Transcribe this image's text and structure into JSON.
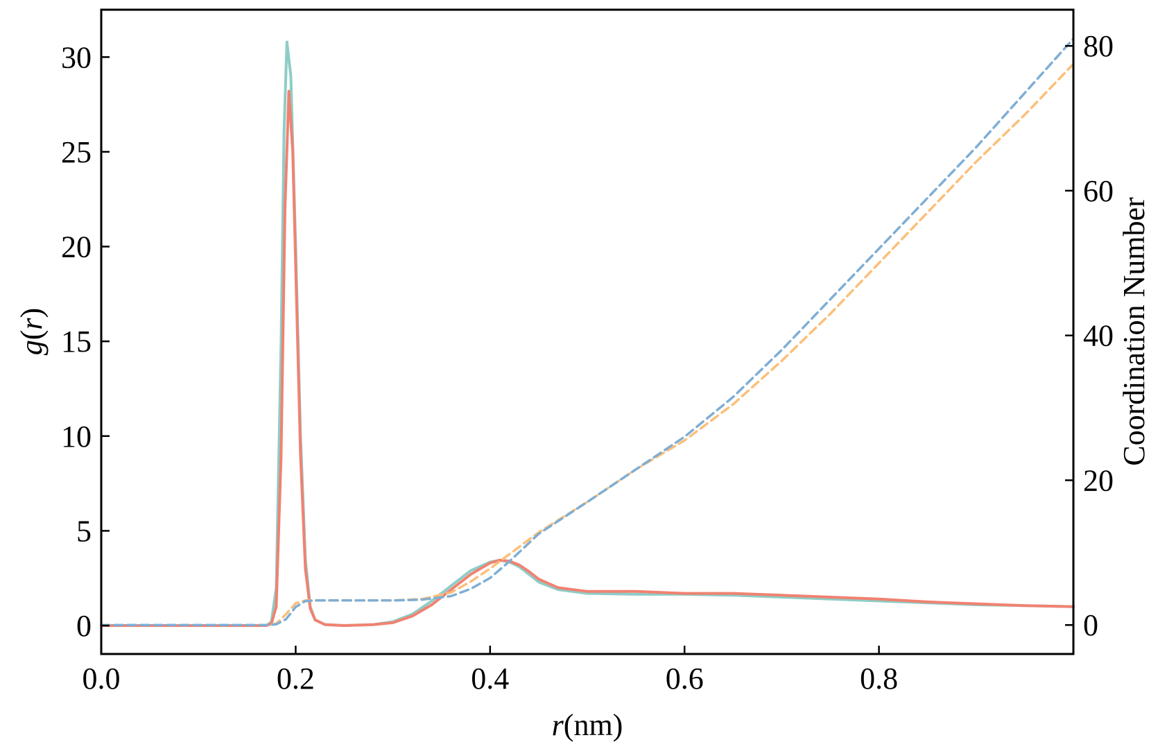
{
  "chart_data": {
    "type": "line",
    "xlabel": {
      "italic": "r",
      "rest": "(nm)"
    },
    "ylabel_left": {
      "pre": "g(",
      "italic": "r",
      "post": ")",
      "italic_g": true
    },
    "ylabel_right": "Coordination Number",
    "xlim": [
      0.0,
      1.0
    ],
    "ylim_left": [
      -1.5,
      32.5
    ],
    "ylim_right": [
      -4,
      85
    ],
    "x_ticks": [
      0.0,
      0.2,
      0.4,
      0.6,
      0.8
    ],
    "x_tick_labels": [
      "0.0",
      "0.2",
      "0.4",
      "0.6",
      "0.8"
    ],
    "y_left_ticks": [
      0,
      5,
      10,
      15,
      20,
      25,
      30
    ],
    "y_left_tick_labels": [
      "0",
      "5",
      "10",
      "15",
      "20",
      "25",
      "30"
    ],
    "y_right_ticks": [
      0,
      20,
      40,
      60,
      80
    ],
    "y_right_tick_labels": [
      "0",
      "20",
      "40",
      "60",
      "80"
    ],
    "grid": false,
    "legend": "none",
    "series": [
      {
        "axis": "left",
        "style": "solid",
        "color": "#8ecdc6",
        "x": [
          0.0,
          0.17,
          0.175,
          0.18,
          0.185,
          0.188,
          0.191,
          0.195,
          0.2,
          0.205,
          0.21,
          0.215,
          0.22,
          0.23,
          0.25,
          0.28,
          0.3,
          0.32,
          0.34,
          0.36,
          0.38,
          0.4,
          0.41,
          0.42,
          0.43,
          0.44,
          0.45,
          0.47,
          0.5,
          0.55,
          0.6,
          0.65,
          0.7,
          0.75,
          0.8,
          0.85,
          0.9,
          0.95,
          1.0
        ],
        "y": [
          0,
          0,
          0.2,
          2.0,
          15.0,
          26.0,
          30.8,
          29.0,
          20.0,
          10.0,
          3.5,
          1.0,
          0.3,
          0.05,
          0.0,
          0.05,
          0.2,
          0.6,
          1.3,
          2.1,
          2.9,
          3.35,
          3.45,
          3.35,
          3.1,
          2.7,
          2.3,
          1.9,
          1.7,
          1.65,
          1.65,
          1.6,
          1.5,
          1.4,
          1.3,
          1.2,
          1.1,
          1.05,
          1.0
        ]
      },
      {
        "axis": "left",
        "style": "solid",
        "color": "#f08272",
        "x": [
          0.0,
          0.17,
          0.175,
          0.18,
          0.185,
          0.189,
          0.193,
          0.197,
          0.2,
          0.205,
          0.21,
          0.215,
          0.22,
          0.23,
          0.25,
          0.28,
          0.3,
          0.32,
          0.34,
          0.36,
          0.38,
          0.4,
          0.41,
          0.42,
          0.43,
          0.44,
          0.45,
          0.47,
          0.5,
          0.55,
          0.6,
          0.65,
          0.7,
          0.75,
          0.8,
          0.85,
          0.9,
          0.95,
          1.0
        ],
        "y": [
          0,
          0,
          0.1,
          1.0,
          9.0,
          22.0,
          28.2,
          25.0,
          19.0,
          9.0,
          3.0,
          0.9,
          0.3,
          0.05,
          0.0,
          0.05,
          0.15,
          0.5,
          1.1,
          1.9,
          2.7,
          3.3,
          3.45,
          3.4,
          3.2,
          2.85,
          2.45,
          2.0,
          1.8,
          1.8,
          1.7,
          1.7,
          1.6,
          1.5,
          1.4,
          1.25,
          1.15,
          1.05,
          1.0
        ]
      },
      {
        "axis": "right",
        "style": "dashed",
        "color": "#fbbf7a",
        "x": [
          0.0,
          0.17,
          0.18,
          0.19,
          0.2,
          0.21,
          0.22,
          0.25,
          0.3,
          0.33,
          0.36,
          0.38,
          0.4,
          0.42,
          0.45,
          0.5,
          0.55,
          0.6,
          0.65,
          0.7,
          0.75,
          0.8,
          0.85,
          0.9,
          0.95,
          1.0
        ],
        "y": [
          0,
          0,
          0.2,
          1.5,
          3.0,
          3.4,
          3.4,
          3.4,
          3.4,
          3.6,
          4.5,
          6.0,
          7.8,
          9.8,
          12.8,
          17.0,
          21.5,
          25.5,
          30.5,
          36.5,
          43.0,
          50.0,
          57.0,
          64.0,
          70.5,
          77.5
        ]
      },
      {
        "axis": "right",
        "style": "dashed",
        "color": "#7faed4",
        "x": [
          0.0,
          0.17,
          0.18,
          0.19,
          0.2,
          0.21,
          0.22,
          0.25,
          0.3,
          0.33,
          0.36,
          0.38,
          0.4,
          0.42,
          0.45,
          0.5,
          0.55,
          0.6,
          0.65,
          0.7,
          0.75,
          0.8,
          0.85,
          0.9,
          0.95,
          1.0
        ],
        "y": [
          0,
          0,
          0.1,
          0.8,
          2.5,
          3.3,
          3.4,
          3.4,
          3.4,
          3.5,
          4.0,
          5.0,
          6.5,
          8.8,
          12.6,
          17.0,
          21.5,
          26.0,
          31.5,
          38.0,
          45.0,
          52.0,
          59.0,
          66.0,
          73.5,
          81.0
        ]
      }
    ]
  }
}
